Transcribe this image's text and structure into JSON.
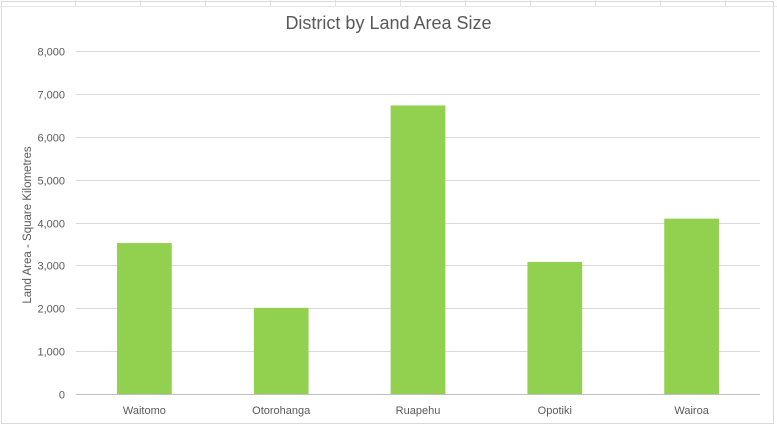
{
  "chart_data": {
    "type": "bar",
    "title": "District by Land Area Size",
    "xlabel": "",
    "ylabel": "Land Area - Square Kilometres",
    "categories": [
      "Waitomo",
      "Otorohanga",
      "Ruapehu",
      "Opotiki",
      "Wairoa"
    ],
    "values": [
      3520,
      2010,
      6730,
      3080,
      4090
    ],
    "ylim": [
      0,
      8000
    ],
    "yticks": [
      0,
      1000,
      2000,
      3000,
      4000,
      5000,
      6000,
      7000,
      8000
    ],
    "ytick_labels": [
      "0",
      "1,000",
      "2,000",
      "3,000",
      "4,000",
      "5,000",
      "6,000",
      "7,000",
      "8,000"
    ],
    "grid": true,
    "legend": "none",
    "bar_color": "#92d050",
    "grid_color": "#d9d9d9",
    "text_color": "#595959"
  }
}
